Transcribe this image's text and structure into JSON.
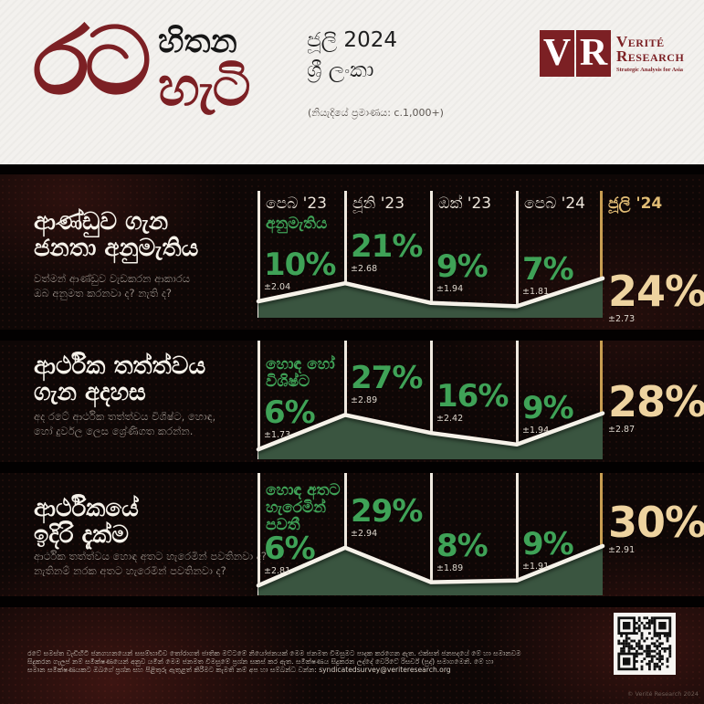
{
  "header": {
    "logo": {
      "word1": "රට",
      "word2": "හිතන",
      "word3": "හැටි"
    },
    "edition_line1": "ජූලි 2024",
    "edition_line2": "ශ්‍රී ලංකා",
    "sample_size": "(නියැදියේ ප්‍රමාණය: c.1,000+)",
    "vr_logo": {
      "letter1": "V",
      "letter2": "R",
      "name_line1": "Verité",
      "name_line2": "Research",
      "tagline": "Strategic Analysis for Asia"
    }
  },
  "columns": [
    "පෙබ '23",
    "ජූනි '23",
    "ඔක් '23",
    "පෙබ '24",
    "ජූලි '24"
  ],
  "rows": [
    {
      "title_line1": "ආණ්ඩුව ගැන",
      "title_line2": "ජනතා අනුමැතිය",
      "subtitle_line1": "වත්මන් ආණ්ඩුව වැඩකරන ආකාරය",
      "subtitle_line2": "ඔබ අනුමත කරනවා ද? නැති ද?",
      "series_label_lines": [
        "අනුමැතිය"
      ],
      "values": [
        "10%",
        "21%",
        "9%",
        "7%",
        "24%"
      ],
      "margins": [
        "±2.04",
        "±2.68",
        "±1.94",
        "±1.81",
        "±2.73"
      ]
    },
    {
      "title_line1": "ආර්ථික තත්ත්වය",
      "title_line2": "ගැන අදහස",
      "subtitle_line1": "අද රටේ ආර්ථික තත්ත්වය විශිෂ්ට, හොඳ,",
      "subtitle_line2": "හෝ දුර්වල ලෙස ශ්‍රේණිගත කරන්න.",
      "series_label_lines": [
        "හොඳ හෝ",
        "විශිෂ්ට"
      ],
      "values": [
        "6%",
        "27%",
        "16%",
        "9%",
        "28%"
      ],
      "margins": [
        "±1.73",
        "±2.89",
        "±2.42",
        "±1.94",
        "±2.87"
      ]
    },
    {
      "title_line1": "ආර්ථිකයේ",
      "title_line2": "ඉදිරි දැක්ම",
      "subtitle_line1": "ආර්ථික තත්ත්වය හොඳ අතට හැරෙමින් පවතිනවා ද?",
      "subtitle_line2": "නැතිනම් නරක අතට හැරෙමින් පවතිනවා ද?",
      "series_label_lines": [
        "හොඳ අතට",
        "හැරෙමින්",
        "පවතී"
      ],
      "values": [
        "6%",
        "29%",
        "8%",
        "9%",
        "30%"
      ],
      "margins": [
        "±2.81",
        "±2.94",
        "±1.89",
        "±1.91",
        "±2.91"
      ]
    }
  ],
  "chart_data": [
    {
      "type": "area",
      "title": "ආණ්ඩුව ගැන ජනතා අනුමැතිය",
      "categories": [
        "පෙබ '23",
        "ජූනි '23",
        "ඔක් '23",
        "පෙබ '24",
        "ජූලි '24"
      ],
      "series": [
        {
          "name": "අනුමැතිය",
          "values": [
            10,
            21,
            9,
            7,
            24
          ]
        }
      ],
      "margins_of_error": [
        2.04,
        2.68,
        1.94,
        1.81,
        2.73
      ],
      "unit": "%",
      "ylim": [
        0,
        35
      ],
      "grid": false,
      "highlight_category": "ජූලි '24"
    },
    {
      "type": "area",
      "title": "ආර්ථික තත්ත්වය ගැන අදහස",
      "categories": [
        "පෙබ '23",
        "ජූනි '23",
        "ඔක් '23",
        "පෙබ '24",
        "ජූලි '24"
      ],
      "series": [
        {
          "name": "හොඳ හෝ විශිෂ්ට",
          "values": [
            6,
            27,
            16,
            9,
            28
          ]
        }
      ],
      "margins_of_error": [
        1.73,
        2.89,
        2.42,
        1.94,
        2.87
      ],
      "unit": "%",
      "ylim": [
        0,
        35
      ],
      "grid": false,
      "highlight_category": "ජූලි '24"
    },
    {
      "type": "area",
      "title": "ආර්ථිකයේ ඉදිරි දැක්ම",
      "categories": [
        "පෙබ '23",
        "ජූනි '23",
        "ඔක් '23",
        "පෙබ '24",
        "ජූලි '24"
      ],
      "series": [
        {
          "name": "හොඳ අතට හැරෙමින් පවතී",
          "values": [
            6,
            29,
            8,
            9,
            30
          ]
        }
      ],
      "margins_of_error": [
        2.81,
        2.94,
        1.89,
        1.91,
        2.91
      ],
      "unit": "%",
      "ylim": [
        0,
        35
      ],
      "grid": false,
      "highlight_category": "ජූලි '24"
    }
  ],
  "footer": {
    "line1": "රටේ සමස්ත වැඩිහිටි ජනගහනයෙන් සසම්භාවීව තෝරාගත් ජාතික මට්ටමේ නියෝජනයක් මෙම ජනමත විමසුමට පාදක කරගෙන ඇත. එක්සත් ජනපදයේ මේ හා සමානවම",
    "line2": "සිදුකරන ගැලප් නම් සමීක්ෂණයෙන් අනුව යමින් මෙම ජනමත විමසුමේ ප්‍රශ්න සකස් කර ඇත. සමීක්ෂණය සිදුකරන ලද්දේ වෙරිටේ රිසර්ච් (පුද්) සමාගමෙනි. මේ හා",
    "line3_prefix": "සමාන සමීක්ෂණයකට ඔබගේ ප්‍රශ්න සහ පිළිතුරු ඇතුළත් කිරීමට කැමති නම් අප හා සම්බන්ධ වන්න:",
    "email": "syndicatedsurvey@veriteresearch.org",
    "copyright": "© Verité Research 2024"
  },
  "colors": {
    "brand_maroon": "#7c2024",
    "green_text": "#3fa257",
    "area_fill": "#3a5540",
    "trend_line": "#f6f2e9",
    "gold_text": "#eed3a0",
    "gold_line": "#c89e52",
    "body_bg": "#0e0706",
    "header_bg": "#f3f1ee"
  }
}
